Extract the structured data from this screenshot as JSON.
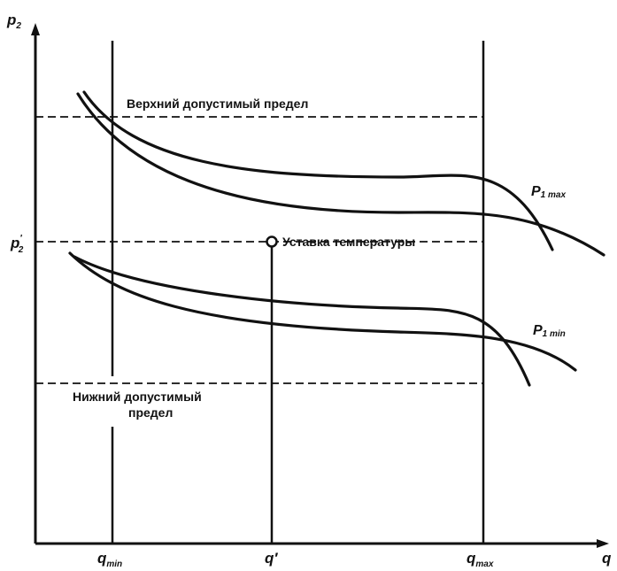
{
  "axes": {
    "y_label_main": "p",
    "y_label_sub": "2",
    "y_tick_main": "p",
    "y_tick_sub": "2",
    "y_tick_sup": "′",
    "x_label": "q",
    "x_tick_min_main": "q",
    "x_tick_min_sub": "min",
    "x_tick_set": "q′",
    "x_tick_max_main": "q",
    "x_tick_max_sub": "max"
  },
  "limits": {
    "upper": "Верхний допустимый предел",
    "lower_line1": "Нижний допустимый",
    "lower_line2": "предел"
  },
  "setpoint": {
    "label": "Уставка температуры"
  },
  "curves": {
    "p1max_main": "P",
    "p1max_sub": "1 max",
    "p1min_main": "P",
    "p1min_sub": "1 min"
  }
}
